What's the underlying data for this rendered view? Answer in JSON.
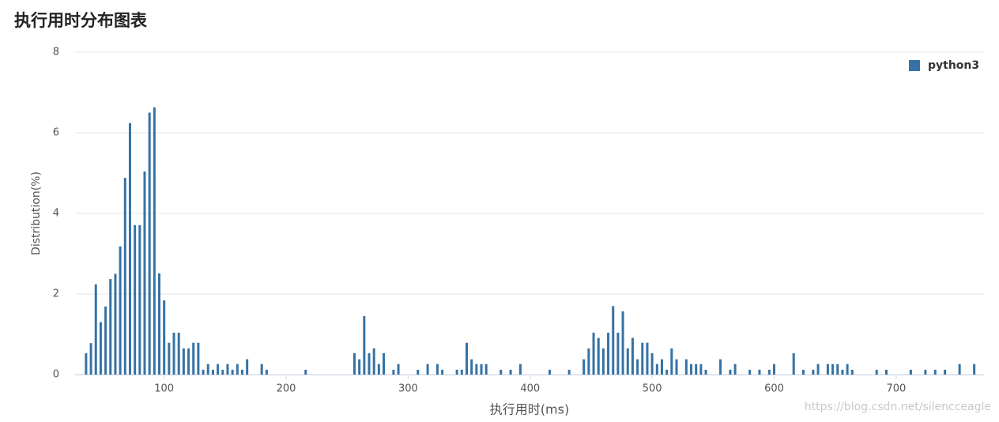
{
  "chart_data": {
    "type": "bar",
    "title": "执行用时分布图表",
    "x_label": "执行用时(ms)",
    "y_label": "Distribution(%)",
    "watermark": "https://blog.csdn.net/silencceagle",
    "legend_position": "top-right",
    "grid": true,
    "xlim": [
      27,
      772
    ],
    "ylim": [
      0,
      8
    ],
    "xticks": [
      100,
      200,
      300,
      400,
      500,
      600,
      700
    ],
    "yticks": [
      0,
      2,
      4,
      6,
      8
    ],
    "x": [
      36,
      40,
      44,
      48,
      52,
      56,
      60,
      64,
      68,
      72,
      76,
      80,
      84,
      88,
      92,
      96,
      100,
      104,
      108,
      112,
      116,
      120,
      124,
      128,
      132,
      136,
      140,
      144,
      148,
      152,
      156,
      160,
      164,
      168,
      180,
      184,
      216,
      256,
      260,
      264,
      268,
      272,
      276,
      280,
      288,
      292,
      308,
      316,
      324,
      328,
      340,
      344,
      348,
      352,
      356,
      360,
      364,
      376,
      384,
      392,
      416,
      432,
      444,
      448,
      452,
      456,
      460,
      464,
      468,
      472,
      476,
      480,
      484,
      488,
      492,
      496,
      500,
      504,
      508,
      512,
      516,
      520,
      528,
      532,
      536,
      540,
      544,
      556,
      564,
      568,
      580,
      588,
      596,
      600,
      616,
      624,
      632,
      636,
      644,
      648,
      652,
      656,
      660,
      664,
      684,
      692,
      712,
      724,
      732,
      740,
      752,
      764
    ],
    "series": [
      {
        "name": "python3",
        "color": "#3572a5",
        "values": [
          0.53,
          0.78,
          2.24,
          1.3,
          1.69,
          2.37,
          2.5,
          3.18,
          4.88,
          6.24,
          3.71,
          3.71,
          5.04,
          6.5,
          6.63,
          2.51,
          1.84,
          0.79,
          1.04,
          1.04,
          0.65,
          0.65,
          0.79,
          0.79,
          0.12,
          0.26,
          0.12,
          0.26,
          0.12,
          0.26,
          0.12,
          0.26,
          0.12,
          0.38,
          0.26,
          0.12,
          0.12,
          0.53,
          0.38,
          1.45,
          0.53,
          0.65,
          0.26,
          0.53,
          0.12,
          0.26,
          0.12,
          0.26,
          0.26,
          0.12,
          0.12,
          0.12,
          0.79,
          0.38,
          0.26,
          0.26,
          0.26,
          0.12,
          0.12,
          0.26,
          0.12,
          0.12,
          0.38,
          0.65,
          1.04,
          0.91,
          0.65,
          1.04,
          1.7,
          1.04,
          1.57,
          0.65,
          0.91,
          0.38,
          0.79,
          0.79,
          0.53,
          0.26,
          0.38,
          0.12,
          0.65,
          0.38,
          0.38,
          0.26,
          0.26,
          0.26,
          0.12,
          0.38,
          0.12,
          0.26,
          0.12,
          0.12,
          0.12,
          0.26,
          0.53,
          0.12,
          0.12,
          0.26,
          0.26,
          0.26,
          0.26,
          0.12,
          0.26,
          0.12,
          0.12,
          0.12,
          0.12,
          0.12,
          0.12,
          0.12,
          0.26,
          0.26
        ]
      }
    ]
  }
}
